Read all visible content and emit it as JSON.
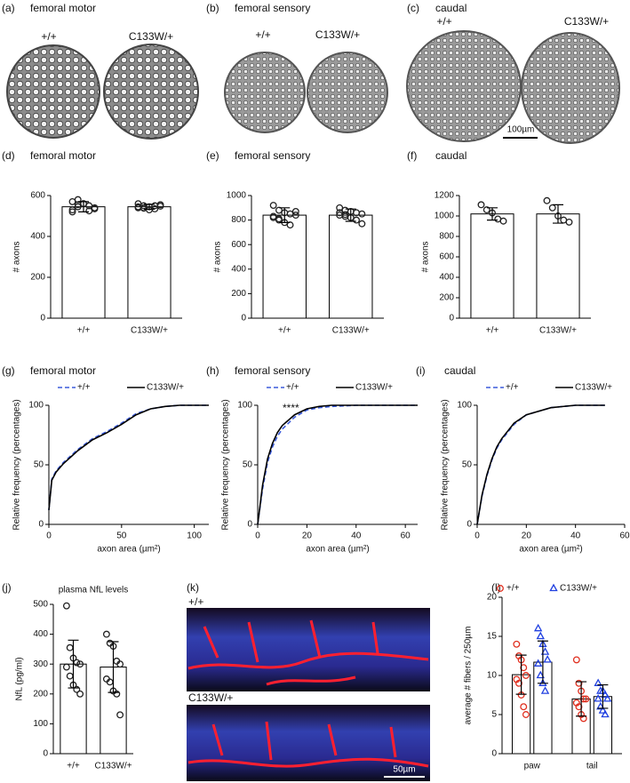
{
  "micrographs": [
    {
      "panel": "(a)",
      "title": "femoral motor",
      "labels": [
        "+/+",
        "C133W/+"
      ]
    },
    {
      "panel": "(b)",
      "title": "femoral sensory",
      "labels": [
        "+/+",
        "C133W/+"
      ]
    },
    {
      "panel": "(c)",
      "title": "caudal",
      "labels": [
        "+/+",
        "C133W/+"
      ],
      "scale_bar": "100µm"
    }
  ],
  "immunostaining": {
    "panel": "(k)",
    "labels": [
      "+/+",
      "C133W/+"
    ],
    "scale_bar": "50µm"
  },
  "chart_data": [
    {
      "type": "bar",
      "panel": "(d)",
      "title": "femoral motor",
      "ylabel": "# axons",
      "categories": [
        "+/+",
        "C133W/+"
      ],
      "values": [
        545,
        545
      ],
      "errors": [
        25,
        12
      ],
      "points": [
        [
          530,
          580,
          560,
          550,
          540,
          520,
          545,
          560,
          525,
          535,
          570,
          555
        ],
        [
          540,
          550,
          545,
          535,
          555,
          560,
          540,
          530,
          550,
          548,
          545,
          538
        ]
      ],
      "ylim": [
        0,
        600
      ],
      "yticks": [
        0,
        200,
        400,
        600
      ]
    },
    {
      "type": "bar",
      "panel": "(e)",
      "title": "femoral sensory",
      "ylabel": "# axons",
      "categories": [
        "+/+",
        "C133W/+"
      ],
      "values": [
        840,
        840
      ],
      "errors": [
        60,
        50
      ],
      "points": [
        [
          920,
          880,
          860,
          850,
          840,
          820,
          800,
          780,
          760,
          870,
          830,
          810
        ],
        [
          900,
          880,
          870,
          860,
          850,
          840,
          830,
          820,
          800,
          770,
          860,
          845
        ]
      ],
      "ylim": [
        0,
        1000
      ],
      "yticks": [
        0,
        200,
        400,
        600,
        800,
        1000
      ]
    },
    {
      "type": "bar",
      "panel": "(f)",
      "title": "caudal",
      "ylabel": "# axons",
      "categories": [
        "+/+",
        "C133W/+"
      ],
      "values": [
        1020,
        1020
      ],
      "errors": [
        60,
        90
      ],
      "points": [
        [
          1110,
          1060,
          1030,
          970,
          950
        ],
        [
          1150,
          1080,
          1000,
          960,
          940
        ]
      ],
      "ylim": [
        0,
        1200
      ],
      "yticks": [
        0,
        200,
        400,
        600,
        800,
        1000,
        1200
      ]
    },
    {
      "type": "line",
      "panel": "(g)",
      "title": "femoral motor",
      "xlabel": "axon area (µm²)",
      "ylabel": "Relative frequency (percentages)",
      "x": [
        0,
        2,
        5,
        10,
        20,
        30,
        40,
        50,
        60,
        70,
        80,
        90,
        100,
        110
      ],
      "series": [
        {
          "name": "+/+",
          "color": "#3b5bdb",
          "dashed": true,
          "values": [
            12,
            38,
            45,
            52,
            63,
            72,
            78,
            85,
            93,
            97,
            99,
            100,
            100,
            100
          ]
        },
        {
          "name": "C133W/+",
          "color": "#000000",
          "dashed": false,
          "values": [
            12,
            37,
            44,
            51,
            62,
            71,
            77,
            84,
            92,
            97,
            99,
            100,
            100,
            100
          ]
        }
      ],
      "xlim": [
        0,
        110
      ],
      "xticks": [
        0,
        50,
        100
      ],
      "ylim": [
        0,
        100
      ],
      "yticks": [
        0,
        50,
        100
      ]
    },
    {
      "type": "line",
      "panel": "(h)",
      "title": "femoral sensory",
      "xlabel": "axon area (µm²)",
      "ylabel": "Relative frequency (percentages)",
      "annotation": "****",
      "x": [
        0,
        2,
        4,
        6,
        8,
        10,
        15,
        20,
        25,
        30,
        40,
        50,
        65
      ],
      "series": [
        {
          "name": "+/+",
          "color": "#3b5bdb",
          "dashed": true,
          "values": [
            0,
            30,
            52,
            65,
            74,
            80,
            90,
            96,
            98,
            99,
            100,
            100,
            100
          ]
        },
        {
          "name": "C133W/+",
          "color": "#000000",
          "dashed": false,
          "values": [
            0,
            33,
            55,
            68,
            77,
            83,
            92,
            97,
            99,
            100,
            100,
            100,
            100
          ]
        }
      ],
      "xlim": [
        0,
        65
      ],
      "xticks": [
        0,
        20,
        40,
        60
      ],
      "ylim": [
        0,
        100
      ],
      "yticks": [
        0,
        50,
        100
      ]
    },
    {
      "type": "line",
      "panel": "(i)",
      "title": "caudal",
      "xlabel": "axon area (µm²)",
      "ylabel": "Relative frequency (percentages)",
      "x": [
        0,
        2,
        4,
        6,
        8,
        10,
        15,
        20,
        30,
        40,
        52
      ],
      "series": [
        {
          "name": "+/+",
          "color": "#3b5bdb",
          "dashed": true,
          "values": [
            0,
            24,
            41,
            54,
            64,
            71,
            84,
            92,
            98,
            100,
            100
          ]
        },
        {
          "name": "C133W/+",
          "color": "#000000",
          "dashed": false,
          "values": [
            0,
            25,
            42,
            55,
            65,
            72,
            85,
            92,
            98,
            100,
            100
          ]
        }
      ],
      "xlim": [
        0,
        60
      ],
      "xticks": [
        0,
        20,
        40,
        60
      ],
      "ylim": [
        0,
        100
      ],
      "yticks": [
        0,
        50,
        100
      ]
    },
    {
      "type": "bar",
      "panel": "(j)",
      "title": "plasma NfL levels",
      "ylabel": "NfL (pg/ml)",
      "categories": [
        "+/+",
        "C133W/+"
      ],
      "values": [
        300,
        290
      ],
      "errors": [
        80,
        85
      ],
      "points": [
        [
          495,
          355,
          320,
          305,
          300,
          290,
          260,
          230,
          215,
          200
        ],
        [
          400,
          370,
          360,
          310,
          300,
          250,
          240,
          210,
          200,
          130
        ]
      ],
      "ylim": [
        0,
        500
      ],
      "yticks": [
        0,
        100,
        200,
        300,
        400,
        500
      ]
    },
    {
      "type": "bar",
      "panel": "(l)",
      "ylabel": "average # fibers / 250µm",
      "categories": [
        "paw",
        "tail"
      ],
      "series": [
        {
          "name": "+/+",
          "color": "#e03020",
          "marker": "circle",
          "values": [
            10.1,
            7.0
          ],
          "errors": [
            2.5,
            2.2
          ],
          "points": [
            [
              14,
              12.5,
              12,
              11,
              10,
              9.5,
              9,
              7.5,
              6,
              5
            ],
            [
              12,
              9,
              8,
              7,
              7,
              6.5,
              6,
              5,
              4.5
            ]
          ]
        },
        {
          "name": "C133W/+",
          "color": "#2040e0",
          "marker": "triangle",
          "values": [
            11.7,
            7.3
          ],
          "errors": [
            2.7,
            1.5
          ],
          "points": [
            [
              16,
              15,
              14,
              13,
              12,
              11.5,
              10,
              9,
              8
            ],
            [
              9,
              8,
              8,
              7.5,
              7,
              7,
              6,
              5.5,
              5
            ]
          ]
        }
      ],
      "ylim": [
        0,
        20
      ],
      "yticks": [
        0,
        5,
        10,
        15,
        20
      ]
    }
  ]
}
